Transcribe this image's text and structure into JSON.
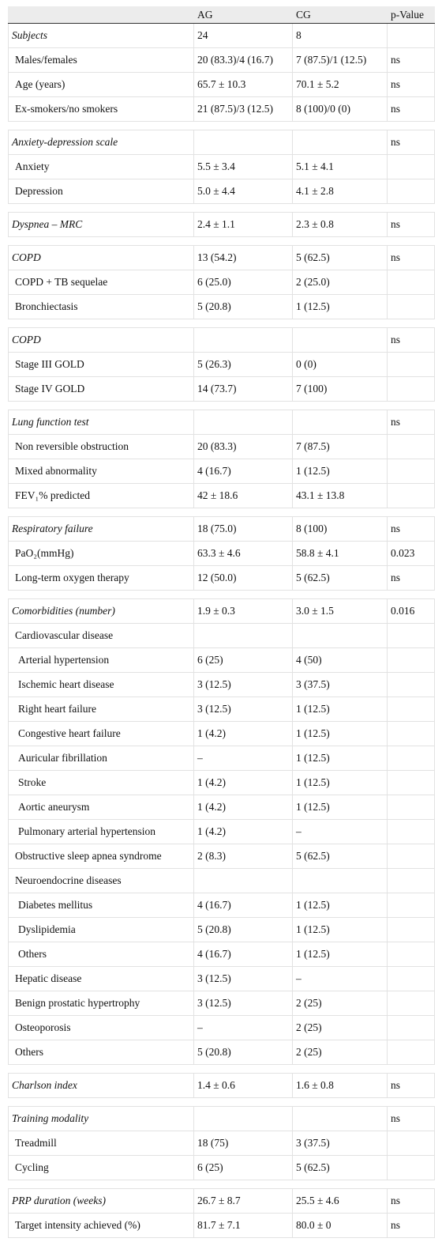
{
  "table": {
    "header": [
      "AG",
      "CG",
      "p-Value"
    ],
    "groups": [
      [
        [
          "Subjects",
          "24",
          "8",
          null
        ],
        [
          "Males/females",
          "20 (83.3)/4 (16.7)",
          "7 (87.5)/1 (12.5)",
          "ns"
        ],
        [
          "Age (years)",
          "65.7 ± 10.3",
          "70.1 ± 5.2",
          "ns"
        ],
        [
          "Ex-smokers/no smokers",
          "21 (87.5)/3 (12.5)",
          "8 (100)/0 (0)",
          "ns"
        ]
      ],
      [
        [
          "Anxiety-depression scale",
          null,
          null,
          "ns"
        ],
        [
          "Anxiety",
          "5.5 ± 3.4",
          "5.1 ± 4.1",
          null
        ],
        [
          "Depression",
          "5.0 ± 4.4",
          "4.1 ± 2.8",
          null
        ]
      ],
      [
        [
          "Dyspnea – MRC",
          "2.4 ± 1.1",
          "2.3 ± 0.8",
          "ns"
        ]
      ],
      [
        [
          "COPD",
          "13 (54.2)",
          "5 (62.5)",
          "ns"
        ],
        [
          "COPD + TB sequelae",
          "6 (25.0)",
          "2 (25.0)",
          null
        ],
        [
          "Bronchiectasis",
          "5 (20.8)",
          "1 (12.5)",
          null
        ]
      ],
      [
        [
          "COPD",
          null,
          null,
          "ns"
        ],
        [
          "Stage III GOLD",
          "5 (26.3)",
          "0 (0)",
          null
        ],
        [
          "Stage IV GOLD",
          "14 (73.7)",
          "7 (100)",
          null
        ]
      ],
      [
        [
          "Lung function test",
          null,
          null,
          "ns"
        ],
        [
          "Non reversible obstruction",
          "20 (83.3)",
          "7 (87.5)",
          null
        ],
        [
          "Mixed abnormality",
          "4 (16.7)",
          "1 (12.5)",
          null
        ],
        [
          "FEV₁% predicted",
          "42 ± 18.6",
          "43.1 ± 13.8",
          null
        ]
      ],
      [
        [
          "Respiratory failure",
          "18 (75.0)",
          "8 (100)",
          "ns"
        ],
        [
          "PaO₂(mmHg)",
          "63.3 ± 4.6",
          "58.8 ± 4.1",
          "0.023"
        ],
        [
          "Long-term oxygen therapy",
          "12 (50.0)",
          "5 (62.5)",
          "ns"
        ]
      ],
      [
        [
          "Comorbidities (number)",
          "1.9 ± 0.3",
          "3.0 ± 1.5",
          "0.016"
        ],
        [
          "Cardiovascular disease",
          null,
          null,
          null
        ],
        [
          "Arterial hypertension",
          "6 (25)",
          "4 (50)",
          null
        ],
        [
          "Ischemic heart disease",
          "3 (12.5)",
          "3 (37.5)",
          null
        ],
        [
          "Right heart failure",
          "3 (12.5)",
          "1 (12.5)",
          null
        ],
        [
          "Congestive heart failure",
          "1 (4.2)",
          "1 (12.5)",
          null
        ],
        [
          "Auricular fibrillation",
          "–",
          "1 (12.5)",
          null
        ],
        [
          "Stroke",
          "1 (4.2)",
          "1 (12.5)",
          null
        ],
        [
          "Aortic aneurysm",
          "1 (4.2)",
          "1 (12.5)",
          null
        ],
        [
          "Pulmonary arterial hypertension",
          "1 (4.2)",
          "–",
          null
        ],
        [
          "Obstructive sleep apnea syndrome",
          "2 (8.3)",
          "5 (62.5)",
          null
        ],
        [
          "Neuroendocrine diseases",
          null,
          null,
          null
        ],
        [
          "Diabetes mellitus",
          "4 (16.7)",
          "1 (12.5)",
          null
        ],
        [
          "Dyslipidemia",
          "5 (20.8)",
          "1 (12.5)",
          null
        ],
        [
          "Others",
          "4 (16.7)",
          "1 (12.5)",
          null
        ],
        [
          "Hepatic disease",
          "3 (12.5)",
          "–",
          null
        ],
        [
          "Benign prostatic hypertrophy",
          "3 (12.5)",
          "2 (25)",
          null
        ],
        [
          "Osteoporosis",
          "–",
          "2 (25)",
          null
        ],
        [
          "Others",
          "5 (20.8)",
          "2 (25)",
          null
        ]
      ],
      [
        [
          "Charlson index",
          "1.4 ± 0.6",
          "1.6 ± 0.8",
          "ns"
        ]
      ],
      [
        [
          "Training modality",
          null,
          null,
          "ns"
        ],
        [
          "Treadmill",
          "18 (75)",
          "3 (37.5)",
          null
        ],
        [
          "Cycling",
          "6 (25)",
          "5 (62.5)",
          null
        ]
      ],
      [
        [
          "PRP duration (weeks)",
          "26.7 ± 8.7",
          "25.5 ± 4.6",
          "ns"
        ],
        [
          "Target intensity achieved (%)",
          "81.7 ± 7.1",
          "80.0 ± 0",
          "ns"
        ]
      ]
    ]
  }
}
